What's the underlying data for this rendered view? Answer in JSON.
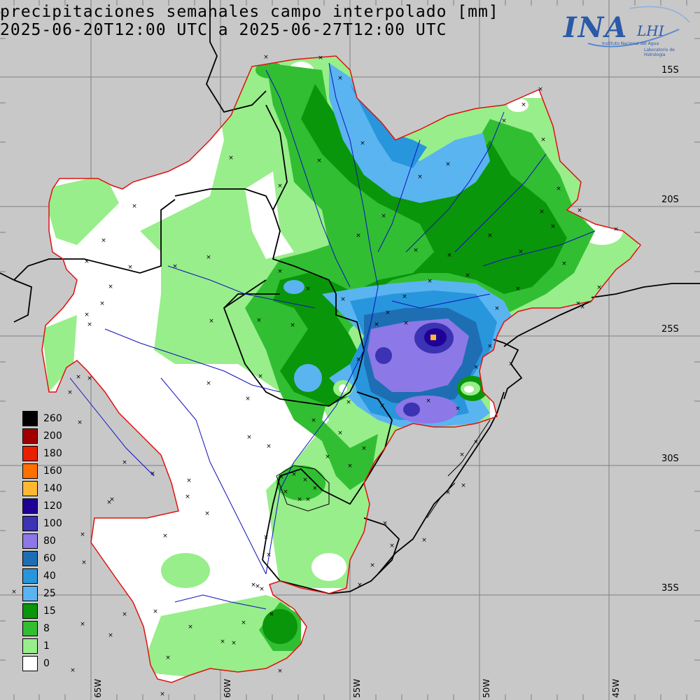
{
  "header": {
    "title_line1": "precipitaciones semanales campo interpolado [mm]",
    "title_line2": "2025-06-20T12:00 UTC a 2025-06-27T12:00 UTC"
  },
  "logo": {
    "main": "INA",
    "lab": "LHI",
    "sub1": "Instituto Nacional del Agua",
    "sub2": "Laboratorio de Hidrología"
  },
  "lat_labels": [
    "15S",
    "20S",
    "25S",
    "30S",
    "35S"
  ],
  "lon_labels": [
    "65W",
    "60W",
    "55W",
    "50W",
    "45W"
  ],
  "legend": [
    {
      "label": "260",
      "color": "#000000"
    },
    {
      "label": "200",
      "color": "#a00000"
    },
    {
      "label": "180",
      "color": "#e82000"
    },
    {
      "label": "160",
      "color": "#ff7000"
    },
    {
      "label": "140",
      "color": "#ffb830"
    },
    {
      "label": "120",
      "color": "#1e0096"
    },
    {
      "label": "100",
      "color": "#3c32b4"
    },
    {
      "label": "80",
      "color": "#8c78e6"
    },
    {
      "label": "60",
      "color": "#1e6eb4"
    },
    {
      "label": "40",
      "color": "#2896dc"
    },
    {
      "label": "25",
      "color": "#5ab4f0"
    },
    {
      "label": "15",
      "color": "#0a960a"
    },
    {
      "label": "8",
      "color": "#32be32"
    },
    {
      "label": "1",
      "color": "#98ee8a"
    },
    {
      "label": "0",
      "color": "#ffffff"
    }
  ],
  "colors": {
    "background": "#c8c8c8",
    "grid": "#808080",
    "basin_outline": "#e01010",
    "rivers": "#1010c0",
    "borders": "#000000"
  }
}
